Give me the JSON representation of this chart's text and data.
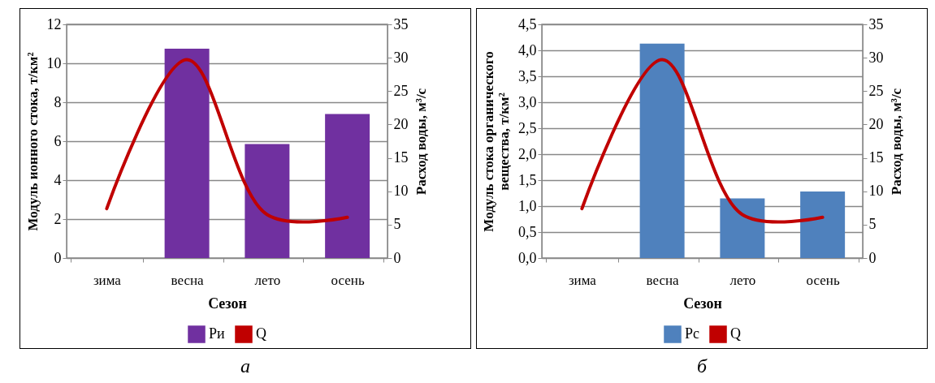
{
  "chart_data": [
    {
      "type": "bar",
      "categories": [
        "зима",
        "весна",
        "лето",
        "осень"
      ],
      "xlabel": "Сезон",
      "ylabel": "Модуль ионного стока, т/км²",
      "y2label": "Расход воды, м³/с",
      "series": [
        {
          "name": "Ри",
          "color": "#7030a0",
          "values": [
            null,
            10.75,
            5.85,
            7.4
          ]
        },
        {
          "name": "Q",
          "type": "line",
          "axis": "y2",
          "color": "#c00000",
          "values": [
            7.4,
            29.7,
            6.5,
            6.1
          ]
        }
      ],
      "ylim": [
        0,
        12
      ],
      "yticks": [
        0,
        2,
        4,
        6,
        8,
        10,
        12
      ],
      "y2lim": [
        0,
        35
      ],
      "y2ticks": [
        0,
        5,
        10,
        15,
        20,
        25,
        30,
        35
      ],
      "grid": "y",
      "legend": "bottom",
      "line_style": "solid",
      "annotations": [
        "а"
      ]
    },
    {
      "type": "bar",
      "categories": [
        "зима",
        "весна",
        "лето",
        "осень"
      ],
      "xlabel": "Сезон",
      "ylabel": "Модуль стока органического вещества, т/км²",
      "y2label": "Расход воды, м³/с",
      "series": [
        {
          "name": "Рс",
          "color": "#4f81bd",
          "values": [
            null,
            4.13,
            1.15,
            1.28
          ]
        },
        {
          "name": "Q",
          "type": "line",
          "axis": "y2",
          "color": "#c00000",
          "values": [
            7.4,
            29.7,
            6.5,
            6.1
          ]
        }
      ],
      "ylim": [
        0,
        4.5
      ],
      "yticks": [
        {
          "value": 0,
          "label": "0,0"
        },
        {
          "value": 0.5,
          "label": "0,5"
        },
        {
          "value": 1,
          "label": "1,0"
        },
        {
          "value": 1.5,
          "label": "1,5"
        },
        {
          "value": 2,
          "label": "2,0"
        },
        {
          "value": 2.5,
          "label": "2,5"
        },
        {
          "value": 3,
          "label": "3,0"
        },
        {
          "value": 3.5,
          "label": "3,5"
        },
        {
          "value": 4,
          "label": "4,0"
        },
        {
          "value": 4.5,
          "label": "4,5"
        }
      ],
      "y2lim": [
        0,
        35
      ],
      "y2ticks": [
        0,
        5,
        10,
        15,
        20,
        25,
        30,
        35
      ],
      "grid": "y",
      "legend": "bottom",
      "line_style": "solid",
      "annotations": [
        "б"
      ]
    }
  ]
}
